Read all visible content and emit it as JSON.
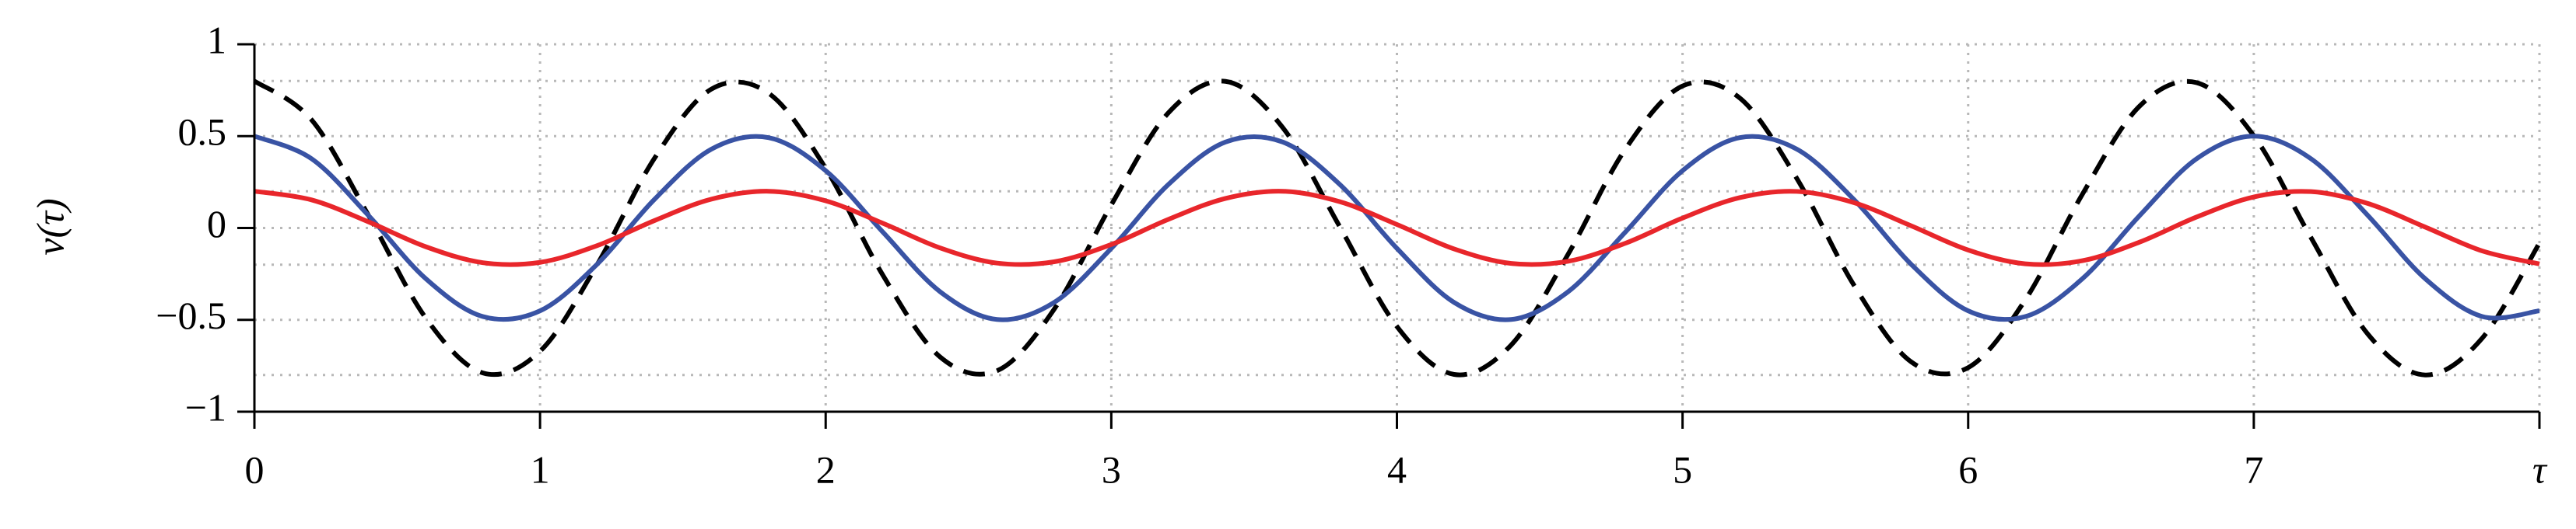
{
  "chart_data": {
    "type": "line",
    "y_label": "v(τ)",
    "x": [
      0,
      0.2,
      0.4,
      0.6,
      0.8,
      1,
      1.2,
      1.4,
      1.6,
      1.8,
      2,
      2.2,
      2.4,
      2.6,
      2.8,
      3,
      3.2,
      3.4,
      3.6,
      3.8,
      4,
      4.2,
      4.4,
      4.6,
      4.8,
      5,
      5.2,
      5.4,
      5.6,
      5.8,
      6,
      6.2,
      6.4,
      6.6,
      6.8,
      7,
      7.2,
      7.4,
      7.6,
      7.8,
      8
    ],
    "series": [
      {
        "color": "#000000",
        "dashed": true,
        "values": [
          0.8,
          0.589,
          0.067,
          -0.49,
          -0.789,
          -0.671,
          -0.199,
          0.378,
          0.756,
          0.734,
          0.325,
          -0.256,
          -0.701,
          -0.777,
          -0.442,
          0.126,
          0.627,
          0.798,
          0.547,
          0.007,
          -0.536,
          -0.797,
          -0.637,
          -0.141,
          0.43,
          0.773,
          0.708,
          0.27,
          -0.311,
          -0.728,
          -0.76,
          -0.391,
          0.184,
          0.663,
          0.791,
          0.502,
          -0.052,
          -0.579,
          -0.8,
          -0.599,
          -0.082
        ]
      },
      {
        "color": "#3953a4",
        "dashed": false,
        "values": [
          0.5,
          0.377,
          0.067,
          -0.276,
          -0.482,
          -0.451,
          -0.197,
          0.155,
          0.429,
          0.492,
          0.312,
          -0.022,
          -0.346,
          -0.498,
          -0.405,
          -0.111,
          0.237,
          0.468,
          0.468,
          0.237,
          -0.111,
          -0.405,
          -0.498,
          -0.346,
          -0.022,
          0.312,
          0.492,
          0.429,
          0.155,
          -0.197,
          -0.451,
          -0.482,
          -0.276,
          0.067,
          0.377,
          0.5,
          0.377,
          0.067,
          -0.276,
          -0.482,
          -0.451
        ]
      },
      {
        "color": "#e8262b",
        "dashed": false,
        "values": [
          0.2,
          0.153,
          0.033,
          -0.102,
          -0.189,
          -0.187,
          -0.096,
          0.04,
          0.157,
          0.2,
          0.148,
          0.026,
          -0.108,
          -0.191,
          -0.184,
          -0.09,
          0.047,
          0.161,
          0.2,
          0.143,
          0.019,
          -0.114,
          -0.193,
          -0.181,
          -0.083,
          0.054,
          0.165,
          0.199,
          0.138,
          0.012,
          -0.12,
          -0.195,
          -0.178,
          -0.077,
          0.06,
          0.169,
          0.198,
          0.133,
          0.005,
          -0.125,
          -0.196
        ]
      }
    ],
    "xlim": [
      0,
      8
    ],
    "ylim": [
      -1,
      1
    ],
    "xticks": [
      0,
      1,
      2,
      3,
      4,
      5,
      6,
      7,
      {
        "value": 8,
        "label": "τ"
      }
    ],
    "yticks": [
      {
        "value": -1,
        "label": "−1"
      },
      {
        "value": -0.5,
        "label": "−0.5"
      },
      0,
      0.5,
      1
    ],
    "minor_yticks": [
      -0.8,
      -0.2,
      0.2,
      0.8
    ],
    "grid": true
  }
}
